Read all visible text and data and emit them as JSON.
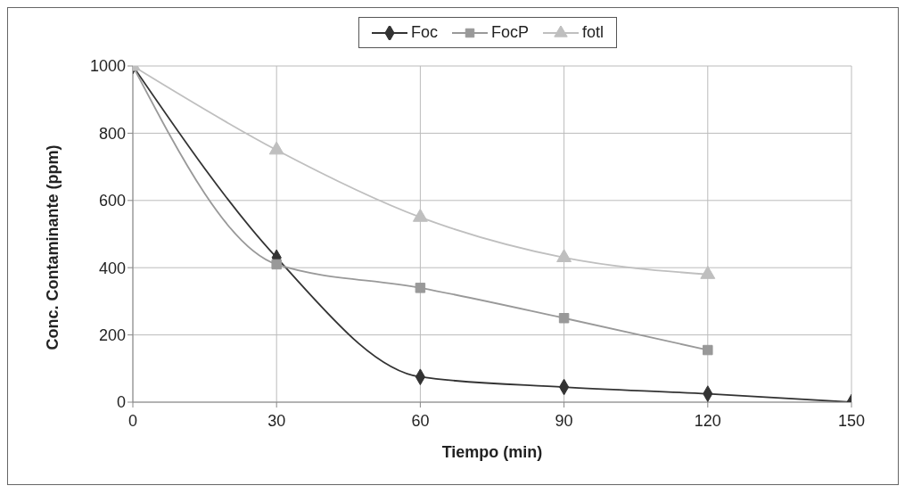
{
  "chart_data": {
    "type": "line",
    "xlabel": "Tiempo (min)",
    "ylabel": "Conc. Contaminante (ppm)",
    "x": [
      0,
      30,
      60,
      90,
      120,
      150
    ],
    "series": [
      {
        "name": "Foc",
        "color": "#333333",
        "marker": "diamond",
        "values": [
          1000,
          430,
          75,
          45,
          25,
          0
        ]
      },
      {
        "name": "FocP",
        "color": "#999999",
        "marker": "square",
        "values": [
          1000,
          410,
          340,
          250,
          155,
          null
        ]
      },
      {
        "name": "fotl",
        "color": "#bfbfbf",
        "marker": "triangle",
        "values": [
          1000,
          750,
          550,
          430,
          380,
          null
        ]
      }
    ],
    "xlim": [
      0,
      150
    ],
    "xticks": [
      0,
      30,
      60,
      90,
      120,
      150
    ],
    "ylim": [
      0,
      1000
    ],
    "yticks": [
      0,
      200,
      400,
      600,
      800,
      1000
    ],
    "grid": true,
    "legend": "top"
  }
}
